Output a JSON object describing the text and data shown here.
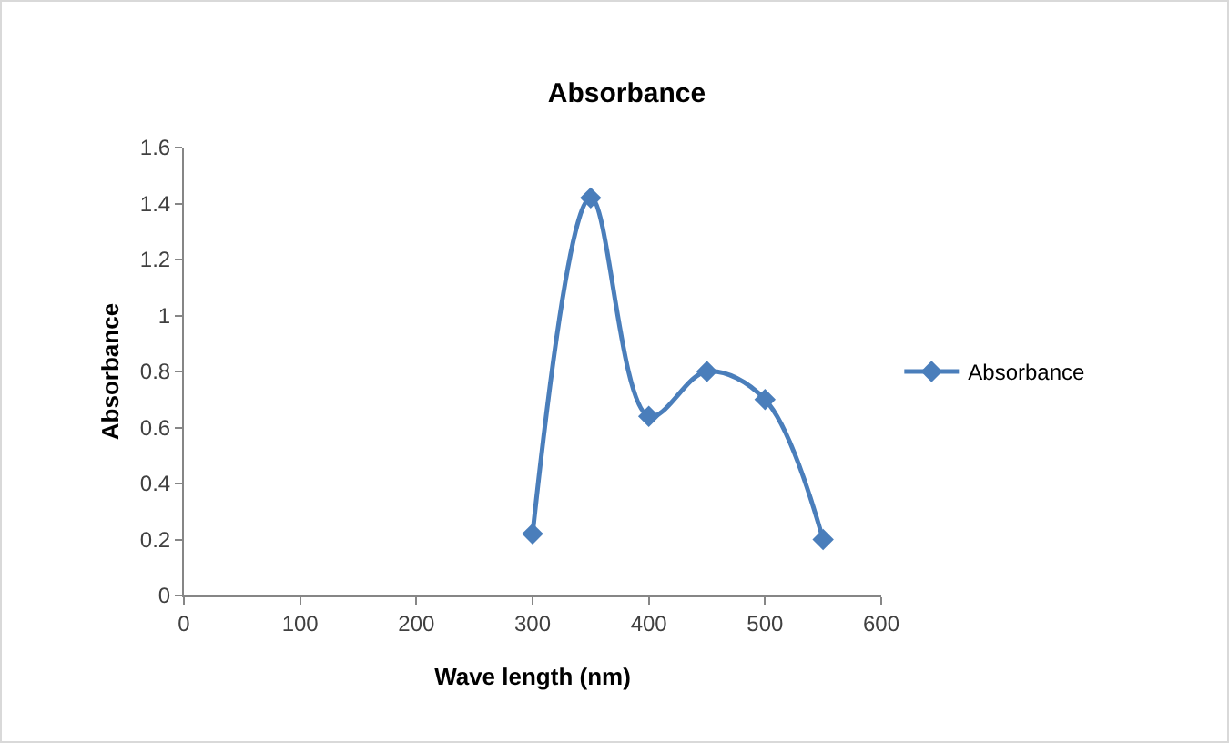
{
  "chart_data": {
    "type": "line",
    "title": "Absorbance",
    "xlabel": "Wave length (nm)",
    "ylabel": "Absorbance",
    "x": [
      300,
      350,
      400,
      450,
      500,
      550
    ],
    "series": [
      {
        "name": "Absorbance",
        "color": "#4a7ebb",
        "values": [
          0.22,
          1.42,
          0.64,
          0.8,
          0.7,
          0.2
        ]
      }
    ],
    "xlim": [
      0,
      600
    ],
    "xticks": [
      0,
      100,
      200,
      300,
      400,
      500,
      600
    ],
    "ylim": [
      0,
      1.6
    ],
    "yticks": [
      0,
      0.2,
      0.4,
      0.6,
      0.8,
      1,
      1.2,
      1.4,
      1.6
    ],
    "grid": false,
    "legend": "right",
    "marker": "diamond",
    "line_style": "solid"
  }
}
